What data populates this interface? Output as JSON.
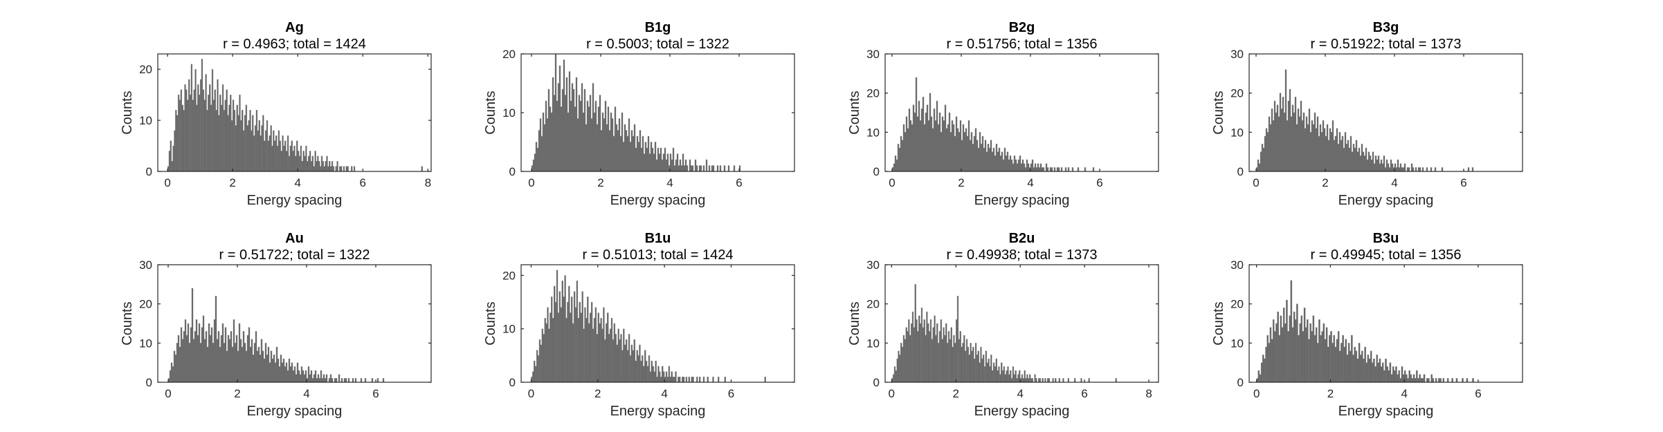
{
  "figure": {
    "bar_color": "#616161",
    "axis_color": "#262626"
  },
  "chart_data": [
    {
      "type": "bar",
      "title": "Ag",
      "subtitle": "r = 0.4963; total = 1424",
      "xlabel": "Energy spacing",
      "ylabel": "Counts",
      "xlim": [
        -0.3,
        8.1
      ],
      "ylim": [
        0,
        23
      ],
      "xticks": [
        0,
        2,
        4,
        6,
        8
      ],
      "yticks": [
        0,
        10,
        20
      ],
      "bin_width": 0.04,
      "x_start": 0,
      "values": [
        1,
        4,
        6,
        2,
        5,
        8,
        12,
        11,
        15,
        14,
        16,
        13,
        12,
        17,
        16,
        14,
        18,
        15,
        21,
        14,
        16,
        20,
        13,
        17,
        15,
        18,
        22,
        16,
        14,
        19,
        12,
        15,
        17,
        13,
        20,
        14,
        16,
        12,
        18,
        11,
        15,
        13,
        17,
        12,
        14,
        16,
        11,
        13,
        15,
        10,
        14,
        12,
        9,
        13,
        11,
        15,
        10,
        12,
        8,
        11,
        13,
        9,
        10,
        12,
        8,
        11,
        7,
        9,
        12,
        8,
        10,
        7,
        9,
        11,
        6,
        8,
        10,
        6,
        7,
        9,
        5,
        8,
        6,
        7,
        5,
        8,
        6,
        4,
        7,
        5,
        6,
        4,
        7,
        3,
        5,
        6,
        4,
        5,
        3,
        6,
        4,
        3,
        5,
        2,
        4,
        3,
        5,
        2,
        3,
        4,
        2,
        3,
        1,
        4,
        2,
        3,
        2,
        1,
        3,
        2,
        1,
        2,
        3,
        1,
        2,
        1,
        2,
        1,
        0,
        1,
        2,
        0,
        1,
        1,
        0,
        1,
        0,
        1,
        1,
        0,
        0,
        1,
        0,
        1,
        0,
        0,
        0,
        0,
        0,
        0,
        0,
        0,
        0,
        0,
        0,
        0,
        0,
        0,
        0,
        0,
        0,
        0,
        0,
        0,
        0,
        0,
        0,
        0,
        0,
        0,
        0,
        0,
        0,
        0,
        0,
        0,
        0,
        0,
        0,
        0,
        0,
        0,
        0,
        0,
        0,
        0,
        0,
        0,
        0,
        0,
        0,
        0,
        0,
        0,
        0,
        1
      ]
    },
    {
      "type": "bar",
      "title": "B1g",
      "subtitle": "r = 0.5003; total = 1322",
      "xlabel": "Energy spacing",
      "ylabel": "Counts",
      "xlim": [
        -0.3,
        7.6
      ],
      "ylim": [
        0,
        20
      ],
      "xticks": [
        0,
        2,
        4,
        6
      ],
      "yticks": [
        0,
        10,
        20
      ],
      "bin_width": 0.04,
      "x_start": 0,
      "values": [
        1,
        2,
        3,
        5,
        4,
        7,
        9,
        6,
        10,
        8,
        12,
        9,
        14,
        11,
        10,
        16,
        13,
        20,
        12,
        15,
        18,
        11,
        14,
        19,
        13,
        16,
        10,
        17,
        12,
        15,
        14,
        11,
        16,
        9,
        13,
        12,
        15,
        10,
        14,
        8,
        12,
        11,
        13,
        9,
        15,
        10,
        12,
        8,
        11,
        13,
        7,
        10,
        9,
        12,
        8,
        11,
        7,
        10,
        9,
        6,
        11,
        8,
        7,
        9,
        6,
        10,
        5,
        8,
        7,
        6,
        9,
        5,
        7,
        6,
        8,
        4,
        6,
        5,
        7,
        4,
        6,
        3,
        5,
        4,
        6,
        3,
        5,
        4,
        3,
        5,
        2,
        4,
        3,
        4,
        2,
        3,
        4,
        2,
        3,
        1,
        3,
        2,
        4,
        1,
        2,
        3,
        1,
        2,
        1,
        3,
        1,
        2,
        1,
        0,
        2,
        1,
        1,
        0,
        2,
        1,
        0,
        1,
        1,
        0,
        1,
        0,
        2,
        0,
        1,
        0,
        1,
        1,
        0,
        0,
        1,
        0,
        1,
        0,
        0,
        1,
        0,
        0,
        1,
        0,
        0,
        0,
        1,
        0,
        0,
        0,
        1
      ]
    },
    {
      "type": "bar",
      "title": "B2g",
      "subtitle": "r = 0.51756; total = 1356",
      "xlabel": "Energy spacing",
      "ylabel": "Counts",
      "xlim": [
        -0.2,
        7.7
      ],
      "ylim": [
        0,
        30
      ],
      "xticks": [
        0,
        2,
        4,
        6
      ],
      "yticks": [
        0,
        10,
        20,
        30
      ],
      "bin_width": 0.04,
      "x_start": 0,
      "values": [
        1,
        2,
        4,
        3,
        7,
        6,
        9,
        8,
        12,
        10,
        14,
        11,
        16,
        13,
        12,
        17,
        15,
        24,
        14,
        18,
        13,
        16,
        19,
        12,
        15,
        17,
        13,
        20,
        14,
        11,
        16,
        13,
        18,
        12,
        15,
        10,
        14,
        13,
        17,
        11,
        12,
        15,
        10,
        13,
        12,
        9,
        14,
        11,
        10,
        13,
        8,
        12,
        10,
        11,
        9,
        13,
        8,
        10,
        7,
        9,
        11,
        8,
        6,
        10,
        7,
        9,
        6,
        8,
        5,
        7,
        6,
        8,
        5,
        6,
        4,
        7,
        5,
        6,
        4,
        5,
        3,
        6,
        4,
        5,
        3,
        4,
        3,
        2,
        4,
        3,
        2,
        3,
        4,
        2,
        3,
        2,
        1,
        3,
        2,
        1,
        2,
        3,
        1,
        2,
        1,
        2,
        1,
        2,
        1,
        1,
        0,
        2,
        1,
        0,
        1,
        1,
        0,
        1,
        0,
        1,
        1,
        0,
        1,
        0,
        0,
        1,
        0,
        1,
        0,
        0,
        1,
        0,
        0,
        0,
        1,
        0,
        0,
        0,
        0,
        1,
        0,
        0,
        0,
        0,
        0,
        1
      ]
    },
    {
      "type": "bar",
      "title": "B3g",
      "subtitle": "r = 0.51922; total = 1373",
      "xlabel": "Energy spacing",
      "ylabel": "Counts",
      "xlim": [
        -0.2,
        7.7
      ],
      "ylim": [
        0,
        30
      ],
      "xticks": [
        0,
        2,
        4,
        6
      ],
      "yticks": [
        0,
        10,
        20,
        30
      ],
      "bin_width": 0.04,
      "x_start": 0,
      "values": [
        1,
        3,
        2,
        5,
        7,
        6,
        9,
        11,
        10,
        14,
        12,
        16,
        13,
        18,
        15,
        17,
        14,
        20,
        16,
        19,
        15,
        26,
        13,
        18,
        21,
        14,
        17,
        15,
        19,
        12,
        16,
        14,
        18,
        13,
        15,
        11,
        14,
        12,
        16,
        10,
        13,
        12,
        15,
        11,
        14,
        9,
        12,
        10,
        13,
        11,
        9,
        12,
        8,
        11,
        10,
        13,
        8,
        9,
        11,
        7,
        10,
        8,
        9,
        6,
        10,
        7,
        8,
        6,
        9,
        5,
        7,
        6,
        8,
        5,
        6,
        4,
        7,
        5,
        4,
        6,
        3,
        5,
        4,
        3,
        5,
        2,
        4,
        3,
        4,
        2,
        3,
        2,
        4,
        1,
        3,
        2,
        1,
        3,
        2,
        1,
        2,
        1,
        3,
        1,
        2,
        1,
        1,
        2,
        0,
        1,
        1,
        0,
        2,
        1,
        0,
        1,
        0,
        1,
        1,
        0,
        1,
        0,
        0,
        1,
        0,
        0,
        1,
        0,
        0,
        1,
        0,
        0,
        0,
        0,
        1,
        0,
        0,
        0,
        0,
        0,
        0,
        0,
        0,
        0,
        0,
        0,
        0,
        0,
        0,
        0,
        0,
        0,
        0,
        1,
        0,
        0,
        1
      ]
    },
    {
      "type": "bar",
      "title": "Au",
      "subtitle": "r = 0.51722; total = 1322",
      "xlabel": "Energy spacing",
      "ylabel": "Counts",
      "xlim": [
        -0.3,
        7.6
      ],
      "ylim": [
        0,
        30
      ],
      "xticks": [
        0,
        2,
        4,
        6
      ],
      "yticks": [
        0,
        10,
        20,
        30
      ],
      "bin_width": 0.04,
      "x_start": 0,
      "values": [
        1,
        3,
        5,
        4,
        8,
        7,
        10,
        12,
        9,
        14,
        11,
        13,
        16,
        12,
        15,
        10,
        14,
        24,
        11,
        13,
        16,
        12,
        15,
        10,
        14,
        17,
        11,
        13,
        9,
        15,
        12,
        14,
        10,
        16,
        22,
        11,
        13,
        9,
        12,
        15,
        10,
        14,
        8,
        12,
        11,
        13,
        9,
        16,
        10,
        12,
        8,
        15,
        11,
        9,
        13,
        10,
        8,
        12,
        14,
        9,
        11,
        7,
        10,
        13,
        8,
        9,
        7,
        11,
        8,
        6,
        10,
        7,
        9,
        5,
        8,
        6,
        7,
        5,
        9,
        6,
        4,
        7,
        5,
        6,
        4,
        5,
        3,
        6,
        4,
        5,
        3,
        4,
        2,
        5,
        3,
        2,
        4,
        3,
        2,
        3,
        1,
        4,
        2,
        3,
        1,
        2,
        3,
        1,
        2,
        1,
        3,
        1,
        2,
        1,
        2,
        0,
        1,
        2,
        1,
        0,
        1,
        1,
        0,
        2,
        0,
        1,
        0,
        1,
        1,
        0,
        1,
        0,
        0,
        1,
        0,
        1,
        0,
        0,
        0,
        1,
        0,
        0,
        1,
        0,
        0,
        0,
        0,
        1,
        0,
        0,
        0,
        1,
        0,
        0,
        0,
        1
      ]
    },
    {
      "type": "bar",
      "title": "B1u",
      "subtitle": "r = 0.51013; total = 1424",
      "xlabel": "Energy spacing",
      "ylabel": "Counts",
      "xlim": [
        -0.3,
        7.9
      ],
      "ylim": [
        0,
        22
      ],
      "xticks": [
        0,
        2,
        4,
        6
      ],
      "yticks": [
        0,
        10,
        20
      ],
      "bin_width": 0.04,
      "x_start": 0,
      "values": [
        1,
        2,
        4,
        3,
        6,
        5,
        8,
        7,
        10,
        9,
        12,
        11,
        14,
        10,
        13,
        16,
        12,
        18,
        15,
        21,
        13,
        17,
        14,
        19,
        16,
        20,
        12,
        15,
        18,
        13,
        16,
        11,
        17,
        14,
        19,
        12,
        15,
        13,
        17,
        10,
        14,
        12,
        16,
        11,
        13,
        15,
        10,
        12,
        14,
        9,
        13,
        11,
        12,
        10,
        14,
        8,
        11,
        13,
        9,
        10,
        12,
        8,
        11,
        9,
        7,
        10,
        8,
        9,
        6,
        10,
        7,
        8,
        6,
        9,
        5,
        7,
        6,
        8,
        4,
        6,
        5,
        7,
        4,
        5,
        3,
        6,
        4,
        3,
        5,
        2,
        4,
        3,
        2,
        4,
        1,
        3,
        2,
        1,
        3,
        2,
        1,
        2,
        1,
        3,
        1,
        2,
        1,
        1,
        2,
        0,
        1,
        1,
        0,
        1,
        1,
        0,
        1,
        0,
        1,
        0,
        1,
        1,
        0,
        0,
        1,
        0,
        1,
        0,
        0,
        1,
        0,
        0,
        1,
        0,
        0,
        0,
        1,
        0,
        0,
        0,
        1,
        0,
        0,
        0,
        0,
        1,
        0,
        0,
        0,
        0,
        0,
        0,
        0,
        0,
        0,
        0,
        0,
        0,
        0,
        0,
        0,
        0,
        0,
        0,
        0,
        0,
        0,
        0,
        0,
        0,
        0,
        0,
        0,
        0,
        0,
        1
      ]
    },
    {
      "type": "bar",
      "title": "B2u",
      "subtitle": "r = 0.49938; total = 1373",
      "xlabel": "Energy spacing",
      "ylabel": "Counts",
      "xlim": [
        -0.2,
        8.3
      ],
      "ylim": [
        0,
        30
      ],
      "xticks": [
        0,
        2,
        4,
        6,
        8
      ],
      "yticks": [
        0,
        10,
        20,
        30
      ],
      "bin_width": 0.04,
      "x_start": 0,
      "values": [
        1,
        2,
        4,
        3,
        6,
        8,
        7,
        10,
        9,
        12,
        11,
        14,
        13,
        16,
        12,
        15,
        18,
        14,
        25,
        16,
        13,
        17,
        15,
        19,
        14,
        16,
        12,
        18,
        15,
        13,
        16,
        11,
        14,
        17,
        12,
        15,
        10,
        13,
        16,
        11,
        14,
        12,
        15,
        10,
        13,
        11,
        14,
        9,
        12,
        10,
        16,
        22,
        11,
        13,
        9,
        10,
        12,
        8,
        11,
        9,
        7,
        10,
        8,
        9,
        6,
        10,
        7,
        8,
        5,
        9,
        6,
        7,
        4,
        8,
        5,
        6,
        4,
        7,
        3,
        5,
        4,
        6,
        3,
        4,
        2,
        5,
        3,
        4,
        2,
        3,
        4,
        2,
        3,
        1,
        4,
        2,
        3,
        1,
        2,
        3,
        1,
        2,
        1,
        3,
        1,
        2,
        1,
        2,
        1,
        1,
        0,
        2,
        1,
        0,
        1,
        1,
        0,
        1,
        0,
        1,
        0,
        1,
        1,
        0,
        0,
        1,
        0,
        1,
        0,
        0,
        1,
        0,
        0,
        1,
        0,
        0,
        0,
        1,
        0,
        0,
        0,
        0,
        1,
        0,
        0,
        0,
        0,
        1,
        0,
        0,
        0,
        0,
        0,
        1,
        0,
        0,
        0,
        0,
        0,
        0,
        0,
        0,
        0,
        0,
        0,
        0,
        0,
        0,
        0,
        0,
        0,
        0,
        0,
        0,
        1
      ]
    },
    {
      "type": "bar",
      "title": "B3u",
      "subtitle": "r = 0.49945; total = 1356",
      "xlabel": "Energy spacing",
      "ylabel": "Counts",
      "xlim": [
        -0.2,
        7.2
      ],
      "ylim": [
        0,
        30
      ],
      "xticks": [
        0,
        2,
        4,
        6
      ],
      "yticks": [
        0,
        10,
        20,
        30
      ],
      "bin_width": 0.04,
      "x_start": 0,
      "values": [
        1,
        3,
        2,
        5,
        7,
        6,
        9,
        12,
        10,
        14,
        11,
        16,
        13,
        15,
        18,
        12,
        17,
        14,
        19,
        15,
        21,
        13,
        17,
        26,
        14,
        18,
        16,
        20,
        12,
        15,
        17,
        13,
        19,
        14,
        16,
        11,
        15,
        13,
        17,
        12,
        14,
        10,
        16,
        12,
        13,
        15,
        11,
        14,
        9,
        12,
        13,
        10,
        12,
        9,
        11,
        13,
        8,
        10,
        12,
        9,
        11,
        7,
        10,
        8,
        12,
        7,
        9,
        8,
        6,
        10,
        7,
        8,
        6,
        9,
        5,
        7,
        6,
        8,
        5,
        6,
        4,
        7,
        5,
        6,
        4,
        5,
        3,
        6,
        4,
        3,
        5,
        2,
        4,
        3,
        4,
        2,
        3,
        1,
        4,
        2,
        3,
        2,
        1,
        3,
        2,
        1,
        2,
        1,
        3,
        1,
        2,
        1,
        1,
        2,
        0,
        1,
        1,
        0,
        2,
        1,
        0,
        1,
        0,
        1,
        1,
        0,
        1,
        0,
        0,
        1,
        0,
        0,
        1,
        0,
        0,
        1,
        0,
        0,
        0,
        1,
        0,
        0,
        1,
        0,
        0,
        0,
        1
      ]
    }
  ]
}
